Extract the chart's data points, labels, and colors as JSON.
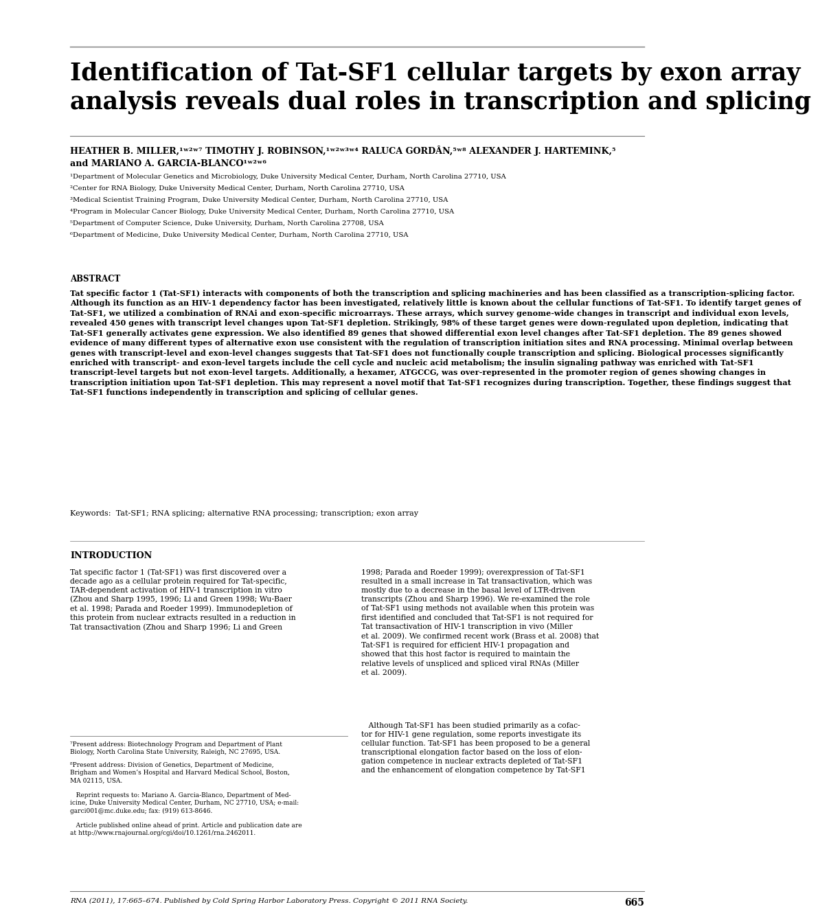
{
  "bg_color": "#ffffff",
  "text_color": "#000000",
  "line_color": "#777777",
  "title_line1": "Identification of Tat-SF1 cellular targets by exon array",
  "title_line2": "analysis reveals dual roles in transcription and splicing",
  "abstract_body": "Tat specific factor 1 (Tat-SF1) interacts with components of both the transcription and splicing machineries and has been classified as a transcription-splicing factor. Although its function as an HIV-1 dependency factor has been investigated, relatively little is known about the cellular functions of Tat-SF1. To identify target genes of Tat-SF1, we utilized a combination of RNAi and exon-specific microarrays. These arrays, which survey genome-wide changes in transcript and individual exon levels, revealed 450 genes with transcript level changes upon Tat-SF1 depletion. Strikingly, 98% of these target genes were down-regulated upon depletion, indicating that Tat-SF1 generally activates gene expression. We also identified 89 genes that showed differential exon level changes after Tat-SF1 depletion. The 89 genes showed evidence of many different types of alternative exon use consistent with the regulation of transcription initiation sites and RNA processing. Minimal overlap between genes with transcript-level and exon-level changes suggests that Tat-SF1 does not functionally couple transcription and splicing. Biological processes significantly enriched with transcript- and exon-level targets include the cell cycle and nucleic acid metabolism; the insulin signaling pathway was enriched with Tat-SF1 transcript-level targets but not exon-level targets. Additionally, a hexamer, ATGCCG, was over-represented in the promoter region of genes showing changes in transcription initiation upon Tat-SF1 depletion. This may represent a novel motif that Tat-SF1 recognizes during transcription. Together, these findings suggest that Tat-SF1 functions independently in transcription and splicing of cellular genes.",
  "keywords": "Keywords:  Tat-SF1; RNA splicing; alternative RNA processing; transcription; exon array",
  "intro_col1": "Tat specific factor 1 (Tat-SF1) was first discovered over a\ndecade ago as a cellular protein required for Tat-specific,\nTAR-dependent activation of HIV-1 transcription in vitro\n(Zhou and Sharp 1995, 1996; Li and Green 1998; Wu-Baer\net al. 1998; Parada and Roeder 1999). Immunodepletion of\nthis protein from nuclear extracts resulted in a reduction in\nTat transactivation (Zhou and Sharp 1996; Li and Green",
  "intro_col2_p1": "1998; Parada and Roeder 1999); overexpression of Tat-SF1\nresulted in a small increase in Tat transactivation, which was\nmostly due to a decrease in the basal level of LTR-driven\ntranscripts (Zhou and Sharp 1996). We re-examined the role\nof Tat-SF1 using methods not available when this protein was\nfirst identified and concluded that Tat-SF1 is not required for\nTat transactivation of HIV-1 transcription in vivo (Miller\net al. 2009). We confirmed recent work (Brass et al. 2008) that\nTat-SF1 is required for efficient HIV-1 propagation and\nshowed that this host factor is required to maintain the\nrelative levels of unspliced and spliced viral RNAs (Miller\net al. 2009).",
  "intro_col2_p2": "   Although Tat-SF1 has been studied primarily as a cofac-\ntor for HIV-1 gene regulation, some reports investigate its\ncellular function. Tat-SF1 has been proposed to be a general\ntranscriptional elongation factor based on the loss of elon-\ngation competence in nuclear extracts depleted of Tat-SF1\nand the enhancement of elongation competence by Tat-SF1",
  "footnote_7": "⁷Present address: Biotechnology Program and Department of Plant\nBiology, North Carolina State University, Raleigh, NC 27695, USA.",
  "footnote_8": "⁸Present address: Division of Genetics, Department of Medicine,\nBrigham and Women’s Hospital and Harvard Medical School, Boston,\nMA 02115, USA.",
  "footnote_reprint": "   Reprint requests to: Mariano A. Garcia-Blanco, Department of Med-\nicine, Duke University Medical Center, Durham, NC 27710, USA; e-mail:\ngarci001@mc.duke.edu; fax: (919) 613-8646.",
  "footnote_article": "   Article published online ahead of print. Article and publication date are\nat http://www.rnajournal.org/cgi/doi/10.1261/rna.2462011.",
  "bottom_journal": "RNA (2011), 17:665–674. Published by Cold Spring Harbor Laboratory Press. Copyright © 2011 RNA Society.",
  "bottom_page_num": "665",
  "affiliations": [
    "¹Department of Molecular Genetics and Microbiology, Duke University Medical Center, Durham, North Carolina 27710, USA",
    "²Center for RNA Biology, Duke University Medical Center, Durham, North Carolina 27710, USA",
    "³Medical Scientist Training Program, Duke University Medical Center, Durham, North Carolina 27710, USA",
    "⁴Program in Molecular Cancer Biology, Duke University Medical Center, Durham, North Carolina 27710, USA",
    "⁵Department of Computer Science, Duke University, Durham, North Carolina 27708, USA",
    "⁶Department of Medicine, Duke University Medical Center, Durham, North Carolina 27710, USA"
  ]
}
